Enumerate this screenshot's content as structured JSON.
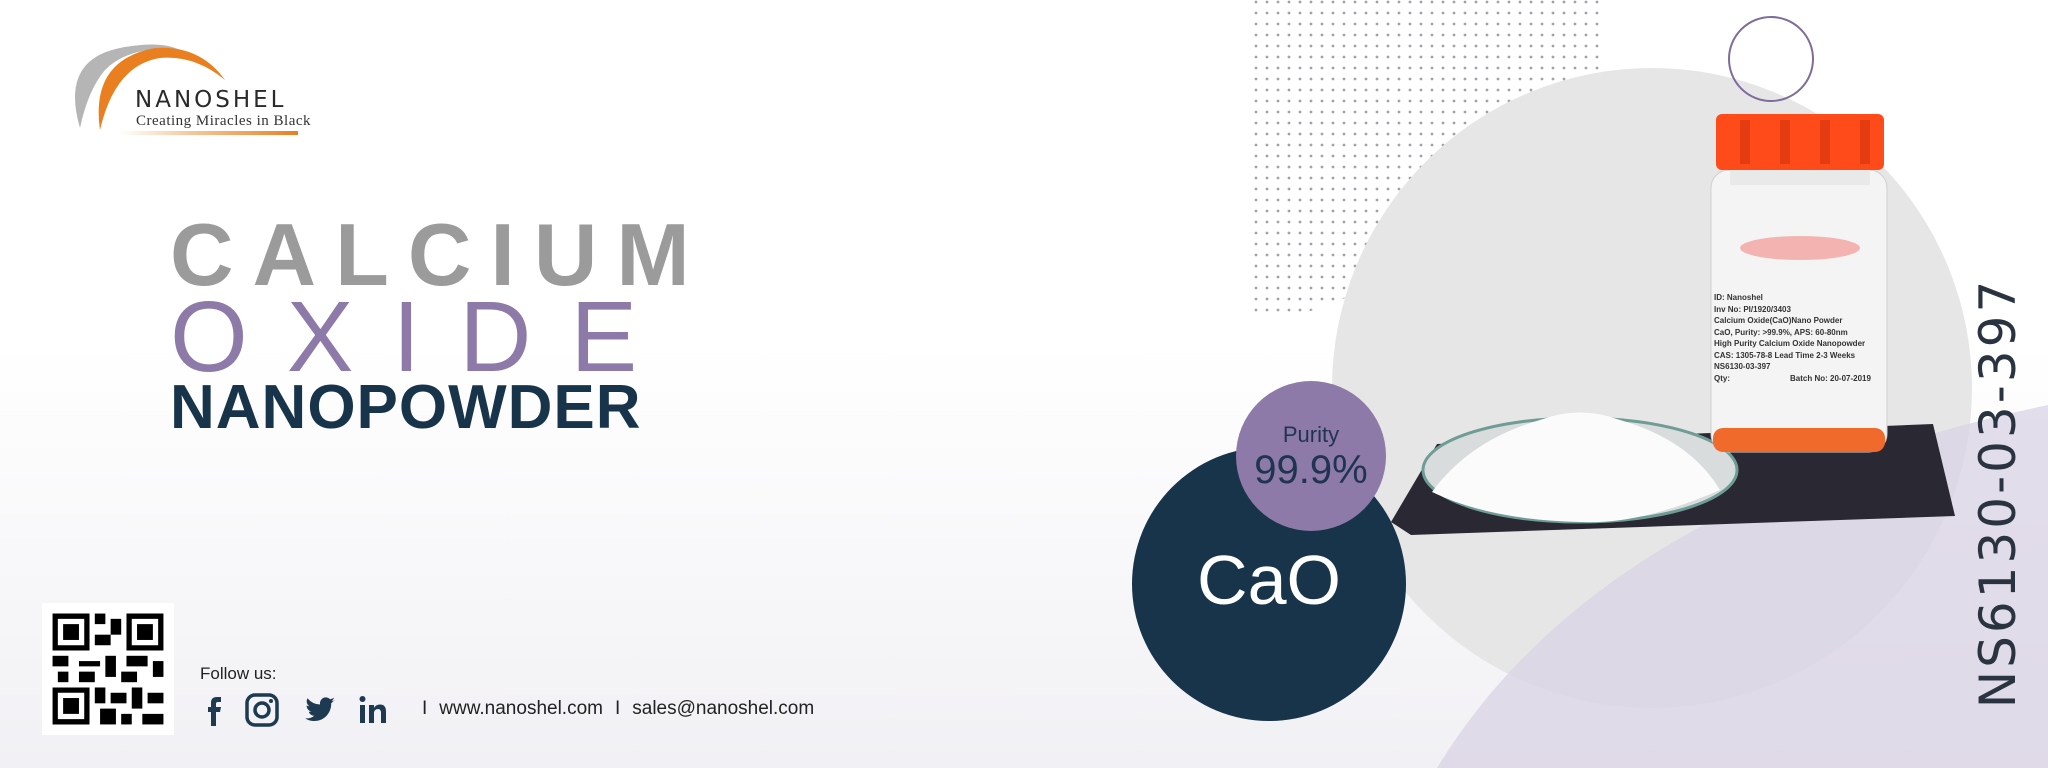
{
  "logo": {
    "brand": "NANOSHEL",
    "tagline": "Creating Miracles in Black"
  },
  "title": {
    "line1": "CALCIUM",
    "line2": "OXIDE",
    "line3": "NANOPOWDER"
  },
  "footer": {
    "follow_label": "Follow us:",
    "social": [
      "facebook-icon",
      "instagram-icon",
      "twitter-icon",
      "linkedin-icon"
    ],
    "separator": "I",
    "website": "www.nanoshel.com",
    "email": "sales@nanoshel.com"
  },
  "badges": {
    "purity_label": "Purity",
    "purity_value": "99.9%",
    "formula": "CaO"
  },
  "product_code": "NS6130-03-397",
  "bottle_label": {
    "lines": [
      "ID: Nanoshel",
      "Inv No: PI/1920/3403",
      "Calcium Oxide(CaO)Nano Powder",
      "CaO, Purity: >99.9%, APS: 60-80nm",
      "High Purity Calcium Oxide Nanopowder",
      "CAS: 1305-78-8 Lead Time  2-3 Weeks",
      "NS6130-03-397",
      "Qty:"
    ],
    "batch": "Batch No: 20-07-2019"
  },
  "colors": {
    "gray": "#9b9b9b",
    "purple": "#8d7aa9",
    "navy": "#17344a",
    "orange": "#e97f1f",
    "cap": "#ff4a1a"
  }
}
